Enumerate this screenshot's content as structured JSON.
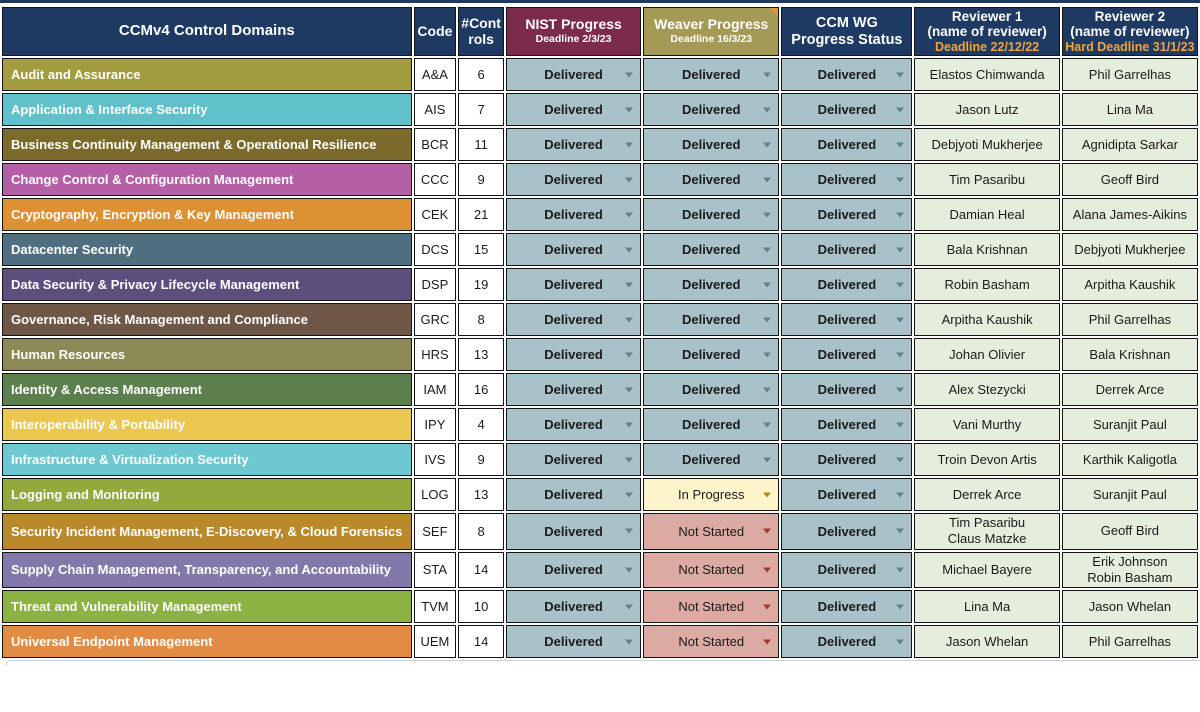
{
  "table": {
    "columns": {
      "domain": {
        "label": "CCMv4 Control Domains"
      },
      "code": {
        "label": "Code"
      },
      "controls": {
        "label": "#Controls"
      },
      "nist": {
        "label": "NIST Progress",
        "deadline": "Deadline 2/3/23"
      },
      "weaver": {
        "label": "Weaver Progress",
        "deadline": "Deadline 16/3/23"
      },
      "ccm": {
        "label": "CCM WG Progress Status"
      },
      "r1": {
        "label": "Reviewer 1",
        "sub": "(name of reviewer)",
        "deadline": "Deadline 22/12/22"
      },
      "r2": {
        "label": "Reviewer 2",
        "sub": "(name of reviewer)",
        "deadline": "Hard Deadline 31/1/23"
      }
    },
    "rows": [
      {
        "domain": "Audit and Assurance",
        "color": "#a39c3e",
        "code": "A&A",
        "controls": "6",
        "nist": "delivered",
        "weaver": "delivered",
        "ccm": "delivered",
        "reviewer1": [
          "Elastos Chimwanda"
        ],
        "reviewer2": [
          "Phil Garrelhas"
        ]
      },
      {
        "domain": "Application & Interface Security",
        "color": "#60c1cb",
        "code": "AIS",
        "controls": "7",
        "nist": "delivered",
        "weaver": "delivered",
        "ccm": "delivered",
        "reviewer1": [
          "Jason Lutz"
        ],
        "reviewer2": [
          "Lina Ma"
        ]
      },
      {
        "domain": "Business Continuity Management & Operational Resilience",
        "color": "#7b6a2b",
        "code": "BCR",
        "controls": "11",
        "nist": "delivered",
        "weaver": "delivered",
        "ccm": "delivered",
        "reviewer1": [
          "Debjyoti Mukherjee"
        ],
        "reviewer2": [
          "Agnidipta Sarkar"
        ]
      },
      {
        "domain": "Change Control & Configuration Management",
        "color": "#b45fa6",
        "code": "CCC",
        "controls": "9",
        "nist": "delivered",
        "weaver": "delivered",
        "ccm": "delivered",
        "reviewer1": [
          "Tim Pasaribu"
        ],
        "reviewer2": [
          "Geoff Bird"
        ]
      },
      {
        "domain": "Cryptography, Encryption & Key Management",
        "color": "#de9132",
        "code": "CEK",
        "controls": "21",
        "nist": "delivered",
        "weaver": "delivered",
        "ccm": "delivered",
        "reviewer1": [
          "Damian Heal"
        ],
        "reviewer2": [
          "Alana James-Aikins"
        ]
      },
      {
        "domain": "Datacenter Security",
        "color": "#4f6f80",
        "code": "DCS",
        "controls": "15",
        "nist": "delivered",
        "weaver": "delivered",
        "ccm": "delivered",
        "reviewer1": [
          "Bala Krishnan"
        ],
        "reviewer2": [
          "Debjyoti Mukherjee"
        ]
      },
      {
        "domain": "Data Security & Privacy Lifecycle Management",
        "color": "#5c4f7e",
        "code": "DSP",
        "controls": "19",
        "nist": "delivered",
        "weaver": "delivered",
        "ccm": "delivered",
        "reviewer1": [
          "Robin Basham"
        ],
        "reviewer2": [
          "Arpitha Kaushik"
        ]
      },
      {
        "domain": "Governance, Risk Management and Compliance",
        "color": "#6e5747",
        "code": "GRC",
        "controls": "8",
        "nist": "delivered",
        "weaver": "delivered",
        "ccm": "delivered",
        "reviewer1": [
          "Arpitha Kaushik"
        ],
        "reviewer2": [
          "Phil Garrelhas"
        ]
      },
      {
        "domain": "Human Resources",
        "color": "#8d8954",
        "code": "HRS",
        "controls": "13",
        "nist": "delivered",
        "weaver": "delivered",
        "ccm": "delivered",
        "reviewer1": [
          "Johan Olivier"
        ],
        "reviewer2": [
          "Bala Krishnan"
        ]
      },
      {
        "domain": "Identity & Access Management",
        "color": "#5c7f4e",
        "code": "IAM",
        "controls": "16",
        "nist": "delivered",
        "weaver": "delivered",
        "ccm": "delivered",
        "reviewer1": [
          "Alex Stezycki"
        ],
        "reviewer2": [
          "Derrek Arce"
        ]
      },
      {
        "domain": "Interoperability & Portability",
        "color": "#ecc74f",
        "code": "IPY",
        "controls": "4",
        "nist": "delivered",
        "weaver": "delivered",
        "ccm": "delivered",
        "reviewer1": [
          "Vani Murthy"
        ],
        "reviewer2": [
          "Suranjit Paul"
        ]
      },
      {
        "domain": "Infrastructure & Virtualization Security",
        "color": "#6dc8d1",
        "code": "IVS",
        "controls": "9",
        "nist": "delivered",
        "weaver": "delivered",
        "ccm": "delivered",
        "reviewer1": [
          "Troin Devon Artis"
        ],
        "reviewer2": [
          "Karthik Kaligotla"
        ]
      },
      {
        "domain": "Logging and Monitoring",
        "color": "#92a93c",
        "code": "LOG",
        "controls": "13",
        "nist": "delivered",
        "weaver": "in_progress",
        "ccm": "delivered",
        "reviewer1": [
          "Derrek Arce"
        ],
        "reviewer2": [
          "Suranjit Paul"
        ]
      },
      {
        "domain": "Security Incident Management, E-Discovery, & Cloud Forensics",
        "color": "#ba892c",
        "code": "SEF",
        "controls": "8",
        "nist": "delivered",
        "weaver": "not_started",
        "ccm": "delivered",
        "reviewer1": [
          "Tim Pasaribu",
          "Claus Matzke"
        ],
        "reviewer2": [
          "Geoff Bird"
        ]
      },
      {
        "domain": "Supply Chain Management, Transparency, and Accountability",
        "color": "#8279aa",
        "code": "STA",
        "controls": "14",
        "nist": "delivered",
        "weaver": "not_started",
        "ccm": "delivered",
        "reviewer1": [
          "Michael Bayere"
        ],
        "reviewer2": [
          "Erik Johnson",
          "Robin Basham"
        ]
      },
      {
        "domain": "Threat and Vulnerability Management",
        "color": "#8bb243",
        "code": "TVM",
        "controls": "10",
        "nist": "delivered",
        "weaver": "not_started",
        "ccm": "delivered",
        "reviewer1": [
          "Lina Ma"
        ],
        "reviewer2": [
          "Jason Whelan"
        ]
      },
      {
        "domain": "Universal Endpoint Management",
        "color": "#e28b44",
        "code": "UEM",
        "controls": "14",
        "nist": "delivered",
        "weaver": "not_started",
        "ccm": "delivered",
        "reviewer1": [
          "Jason Whelan"
        ],
        "reviewer2": [
          "Phil Garrelhas"
        ]
      }
    ]
  },
  "status_styles": {
    "delivered": {
      "label": "Delivered",
      "bg": "#a9c2ca",
      "arrow": "#64808b",
      "bold": true
    },
    "in_progress": {
      "label": "In Progress",
      "bg": "#fdf4cb",
      "arrow": "#ab8c1c",
      "bold": false
    },
    "not_started": {
      "label": "Not Started",
      "bg": "#dcaaa3",
      "arrow": "#9c3b2a",
      "bold": false
    }
  },
  "colors": {
    "header_navy": "#1e3a63",
    "header_maroon": "#7c2b4d",
    "header_olive": "#a59a55",
    "deadline_orange": "#f0a23c",
    "reviewer_green": "#e5eedc"
  }
}
